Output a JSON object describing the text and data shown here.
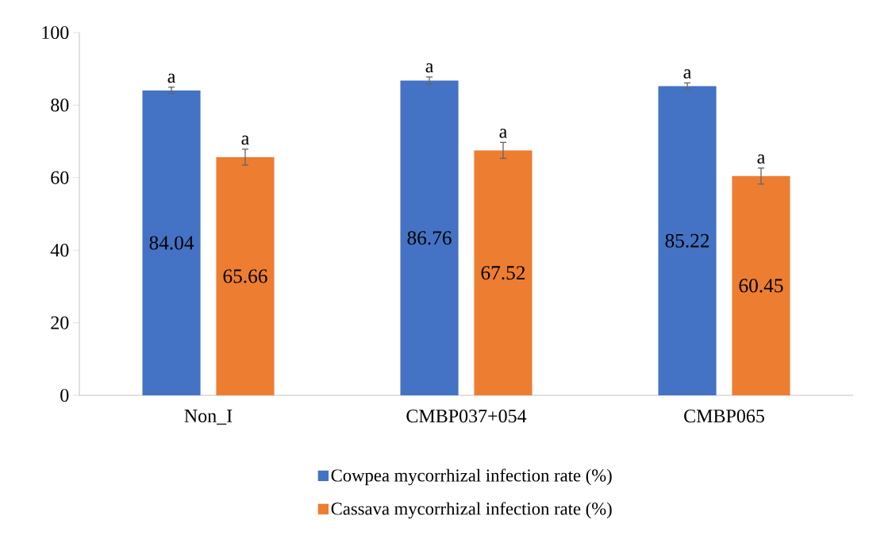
{
  "chart_data": {
    "type": "bar",
    "categories": [
      "Non_I",
      "CMBP037+054",
      "CMBP065"
    ],
    "series": [
      {
        "name": "Cowpea mycorrhizal infection rate (%)",
        "color": "#4472c4",
        "values": [
          84.04,
          86.76,
          85.22
        ],
        "errors": [
          0.9,
          1.0,
          0.9
        ]
      },
      {
        "name": "Cassava mycorrhizal infection rate (%)",
        "color": "#ed7d31",
        "values": [
          65.66,
          67.52,
          60.45
        ],
        "errors": [
          2.2,
          2.2,
          2.2
        ]
      }
    ],
    "ylim": [
      0,
      100
    ],
    "yticks": [
      0,
      20,
      40,
      60,
      80,
      100
    ],
    "grid": false,
    "legend": "bottom",
    "data_labels": true,
    "annotations": [
      "a",
      "a",
      "a",
      "a",
      "a",
      "a"
    ]
  }
}
